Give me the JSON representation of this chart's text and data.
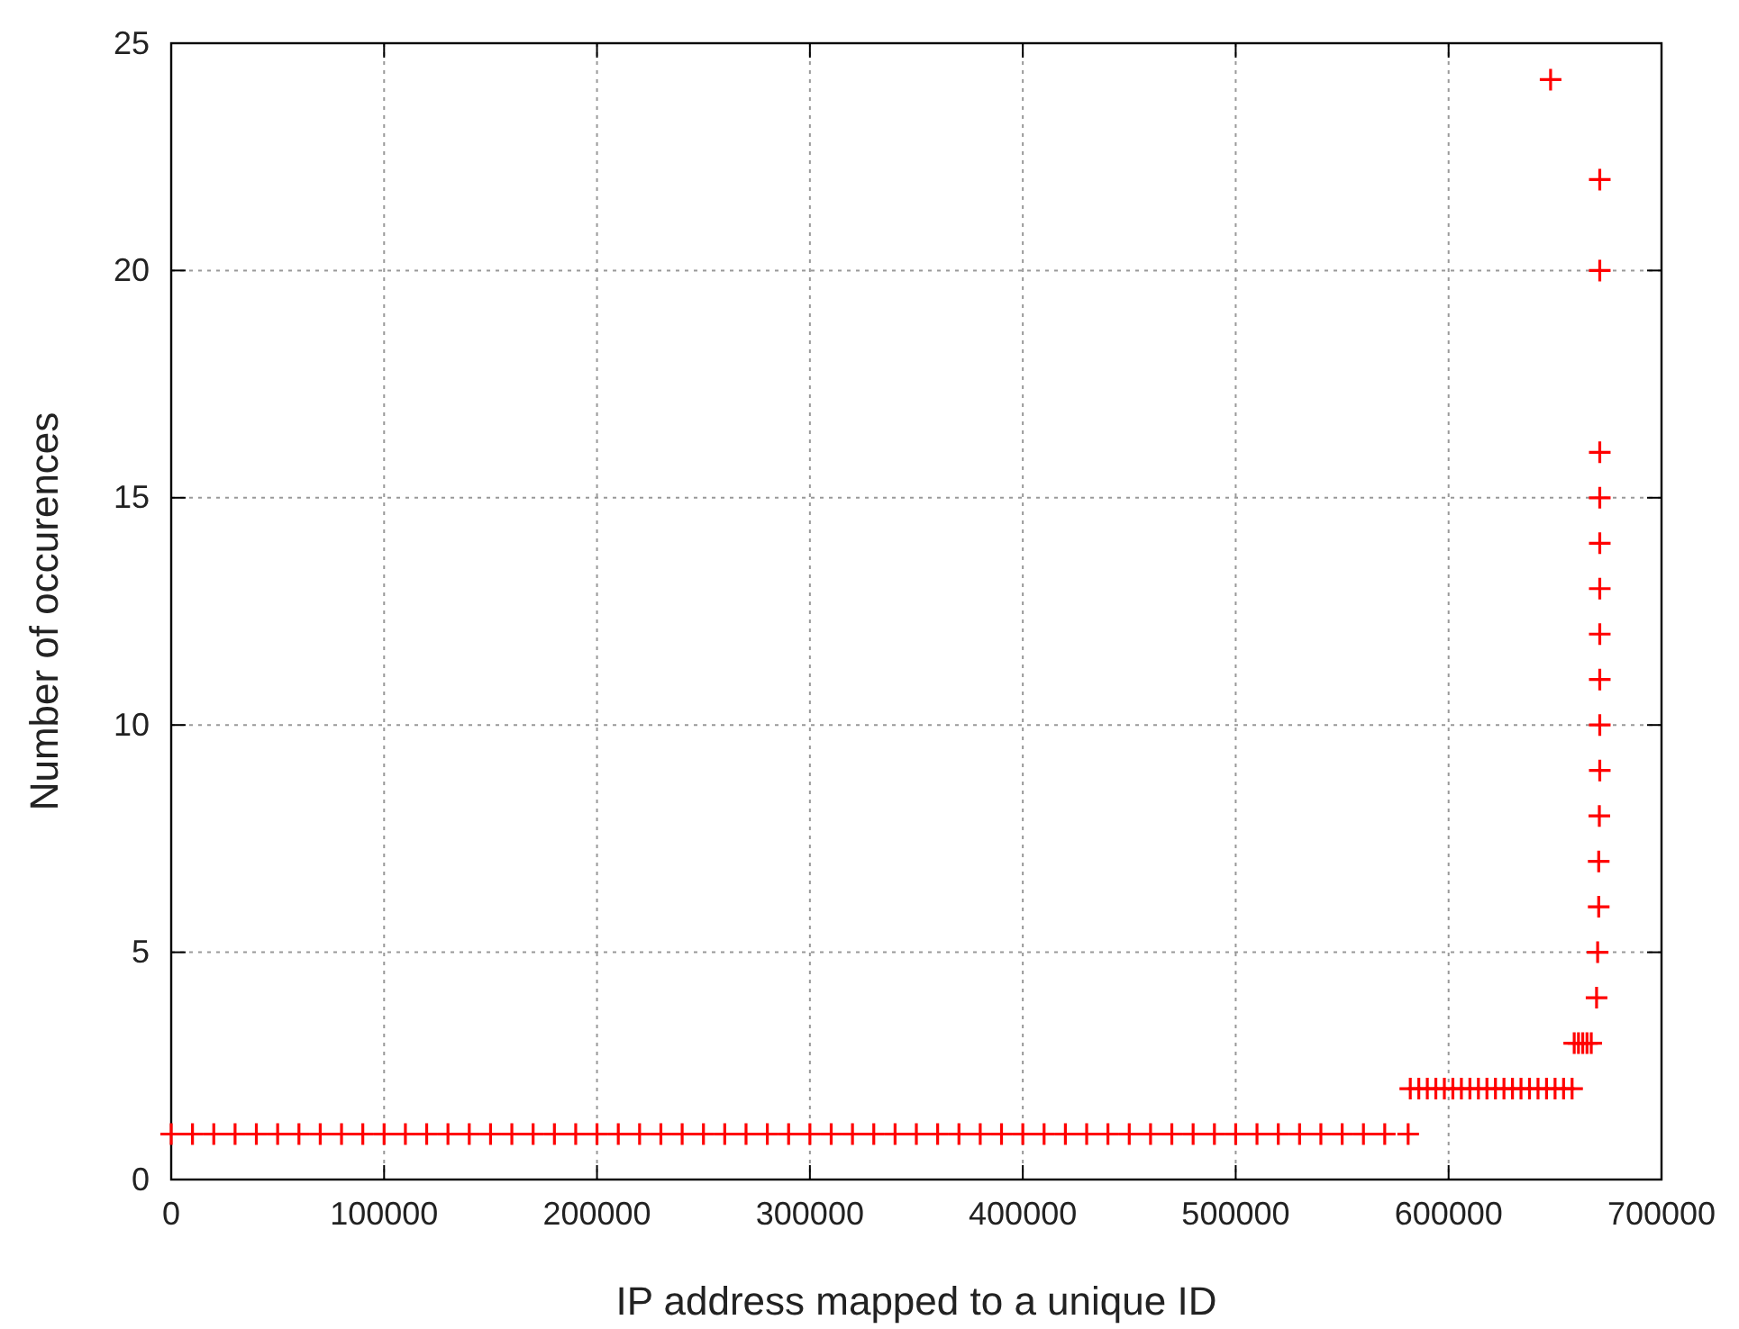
{
  "chart_data": {
    "type": "scatter",
    "xlabel": "IP address mapped to a unique ID",
    "ylabel": "Number of occurences",
    "xlim": [
      0,
      700000
    ],
    "xticks": [
      0,
      100000,
      200000,
      300000,
      400000,
      500000,
      600000,
      700000
    ],
    "ylim": [
      0,
      25
    ],
    "yticks": [
      0,
      5,
      10,
      15,
      20,
      25
    ],
    "grid": true,
    "marker": "cross",
    "series": [
      {
        "color": "#ff0000",
        "x": [
          0,
          10000,
          20000,
          30000,
          40000,
          50000,
          60000,
          70000,
          80000,
          90000,
          100000,
          110000,
          120000,
          130000,
          140000,
          150000,
          160000,
          170000,
          180000,
          190000,
          200000,
          210000,
          220000,
          230000,
          240000,
          250000,
          260000,
          270000,
          280000,
          290000,
          300000,
          310000,
          320000,
          330000,
          340000,
          350000,
          360000,
          370000,
          380000,
          390000,
          400000,
          410000,
          420000,
          430000,
          440000,
          450000,
          460000,
          470000,
          480000,
          490000,
          500000,
          510000,
          520000,
          530000,
          540000,
          550000,
          560000,
          570000,
          581000,
          582000,
          586000,
          590000,
          594000,
          598000,
          602000,
          606000,
          610000,
          614000,
          618000,
          622000,
          626000,
          630000,
          634000,
          638000,
          642000,
          646000,
          650000,
          654000,
          658000,
          659000,
          661000,
          663000,
          665000,
          667000,
          669500,
          670000,
          670500,
          670500,
          670800,
          671000,
          671000,
          671000,
          671000,
          671000,
          671000,
          671000,
          671000,
          671000,
          671000,
          647900
        ],
        "values": [
          1,
          1,
          1,
          1,
          1,
          1,
          1,
          1,
          1,
          1,
          1,
          1,
          1,
          1,
          1,
          1,
          1,
          1,
          1,
          1,
          1,
          1,
          1,
          1,
          1,
          1,
          1,
          1,
          1,
          1,
          1,
          1,
          1,
          1,
          1,
          1,
          1,
          1,
          1,
          1,
          1,
          1,
          1,
          1,
          1,
          1,
          1,
          1,
          1,
          1,
          1,
          1,
          1,
          1,
          1,
          1,
          1,
          1,
          1,
          2,
          2,
          2,
          2,
          2,
          2,
          2,
          2,
          2,
          2,
          2,
          2,
          2,
          2,
          2,
          2,
          2,
          2,
          2,
          2,
          3,
          3,
          3,
          3,
          3,
          4,
          5,
          6,
          7,
          8,
          9,
          10,
          11,
          12,
          13,
          14,
          15,
          16,
          20,
          22,
          24.2
        ]
      }
    ]
  }
}
